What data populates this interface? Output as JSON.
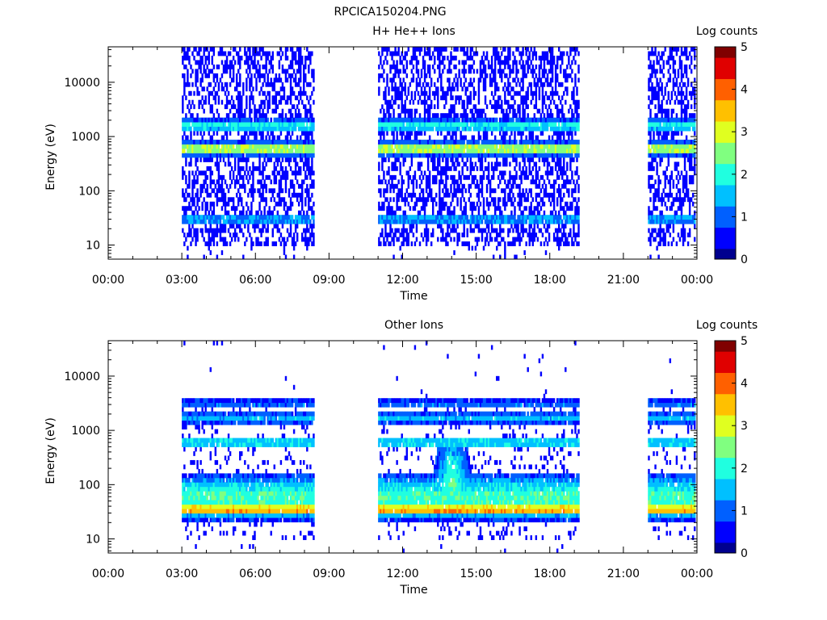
{
  "figure_title": "RPCICA150204.PNG",
  "colormap": [
    "#00008f",
    "#0000ff",
    "#0060ff",
    "#00c0ff",
    "#20ffe0",
    "#80ff80",
    "#e0ff20",
    "#ffc000",
    "#ff6000",
    "#e00000",
    "#800000"
  ],
  "chart_data": [
    {
      "type": "heatmap",
      "title": "H+ He++ Ions",
      "xlabel": "Time",
      "ylabel": "Energy (eV)",
      "x_ticks": [
        "00:00",
        "03:00",
        "06:00",
        "09:00",
        "12:00",
        "15:00",
        "18:00",
        "21:00",
        "00:00"
      ],
      "xlim_hours": [
        0,
        24
      ],
      "y_scale": "log",
      "y_ticks": [
        "10",
        "100",
        "1000",
        "10000"
      ],
      "ylim": [
        5.5,
        45000
      ],
      "colorbar": {
        "label": "Log counts",
        "ticks": [
          "0",
          "1",
          "2",
          "3",
          "4",
          "5"
        ],
        "range": [
          0,
          5
        ]
      },
      "data_intervals_hours": [
        [
          3.0,
          8.4
        ],
        [
          11.0,
          19.2
        ],
        [
          22.0,
          23.9
        ]
      ],
      "bands": [
        {
          "energy_ev": 30,
          "level": 1.4,
          "note": "low-energy band"
        },
        {
          "energy_ev": 600,
          "level": 3.0,
          "note": "main band, peaks ~3.5 around 06:30 and 17:30"
        },
        {
          "energy_ev": 1600,
          "level": 2.0,
          "note": "upper band"
        }
      ]
    },
    {
      "type": "heatmap",
      "title": "Other Ions",
      "xlabel": "Time",
      "ylabel": "Energy (eV)",
      "x_ticks": [
        "00:00",
        "03:00",
        "06:00",
        "09:00",
        "12:00",
        "15:00",
        "18:00",
        "21:00",
        "00:00"
      ],
      "xlim_hours": [
        0,
        24
      ],
      "y_scale": "log",
      "y_ticks": [
        "10",
        "100",
        "1000",
        "10000"
      ],
      "ylim": [
        5.5,
        45000
      ],
      "colorbar": {
        "label": "Log counts",
        "ticks": [
          "0",
          "1",
          "2",
          "3",
          "4",
          "5"
        ],
        "range": [
          0,
          5
        ]
      },
      "data_intervals_hours": [
        [
          3.0,
          8.4
        ],
        [
          11.0,
          19.2
        ],
        [
          22.0,
          23.9
        ]
      ],
      "bands": [
        {
          "energy_ev": 35,
          "level": 3.8,
          "note": "dominant low-energy band, up to ~4.2"
        },
        {
          "energy_ev": 60,
          "level": 2.2,
          "note": "broad spread 50-200 eV, enhancement near 14:00"
        },
        {
          "energy_ev": 600,
          "level": 1.8,
          "note": "band"
        },
        {
          "energy_ev": 1700,
          "level": 1.5,
          "note": "band"
        },
        {
          "energy_ev": 3000,
          "level": 1.0,
          "note": "band"
        }
      ]
    }
  ]
}
